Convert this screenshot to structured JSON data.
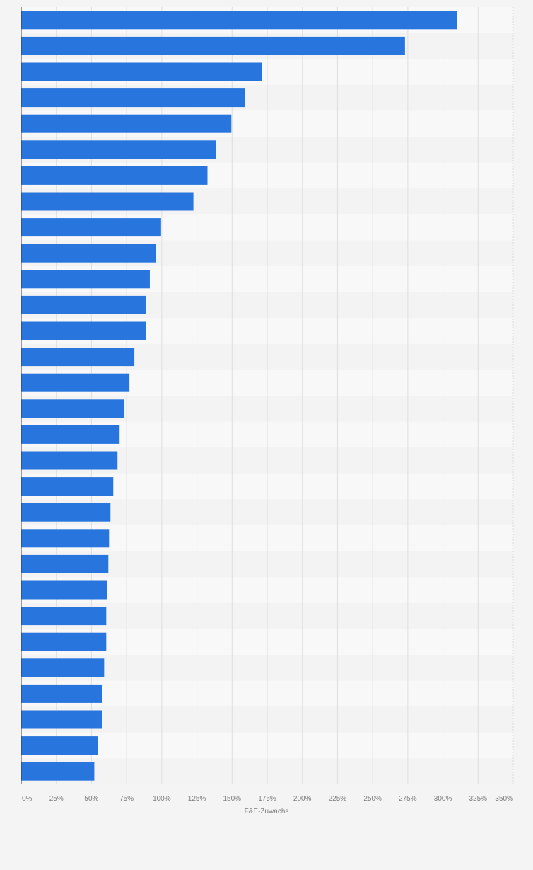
{
  "chart_data": {
    "type": "bar",
    "orientation": "horizontal",
    "xlabel": "F&E-Zuwachs",
    "ylabel": "",
    "xlim": [
      0,
      350
    ],
    "x_ticks": [
      "0%",
      "25%",
      "50%",
      "75%",
      "100%",
      "125%",
      "150%",
      "175%",
      "200%",
      "225%",
      "250%",
      "275%",
      "300%",
      "325%",
      "350%"
    ],
    "grid": true,
    "legend": "none",
    "values": [
      310,
      273,
      171,
      159,
      149.5,
      138.5,
      132.5,
      122.5,
      99.5,
      96,
      91.5,
      88.5,
      88.5,
      80.5,
      77,
      73,
      70,
      68.5,
      65.5,
      63.5,
      62.5,
      62,
      61,
      60.5,
      60.5,
      59,
      57.5,
      57.5,
      54.5,
      52
    ],
    "bar_color": "#2876dd"
  }
}
